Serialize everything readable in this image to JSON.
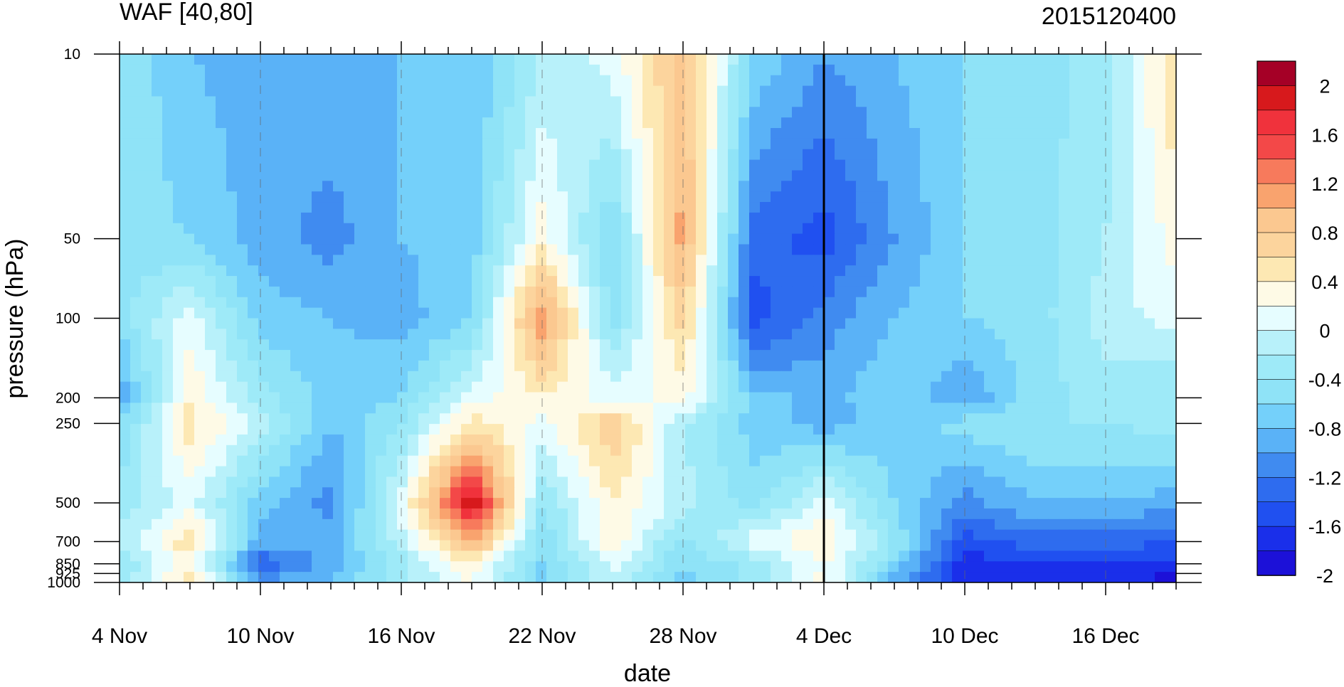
{
  "chart_data": {
    "type": "heatmap",
    "title": "WAF [40,80]",
    "subtitle": "2015120400",
    "xlabel": "date",
    "ylabel": "pressure (hPa)",
    "x_start": "2015-11-04",
    "x_end": "2015-12-19",
    "marker_date": "2015-12-04",
    "x_ticks": [
      {
        "date": "2015-11-04",
        "label": "4 Nov"
      },
      {
        "date": "2015-11-10",
        "label": "10 Nov"
      },
      {
        "date": "2015-11-16",
        "label": "16 Nov"
      },
      {
        "date": "2015-11-22",
        "label": "22 Nov"
      },
      {
        "date": "2015-11-28",
        "label": "28 Nov"
      },
      {
        "date": "2015-12-04",
        "label": "4 Dec"
      },
      {
        "date": "2015-12-10",
        "label": "10 Dec"
      },
      {
        "date": "2015-12-16",
        "label": "16 Dec"
      }
    ],
    "y_scale": "log",
    "y_reversed": true,
    "ylim": [
      1000,
      10
    ],
    "y_ticks": [
      {
        "value": 10,
        "label": "10"
      },
      {
        "value": 50,
        "label": "50"
      },
      {
        "value": 100,
        "label": "100"
      },
      {
        "value": 200,
        "label": "200"
      },
      {
        "value": 250,
        "label": "250"
      },
      {
        "value": 500,
        "label": "500"
      },
      {
        "value": 700,
        "label": "700"
      },
      {
        "value": 850,
        "label": "850"
      },
      {
        "value": 925,
        "label": "925"
      },
      {
        "value": 1000,
        "label": "1000"
      }
    ],
    "levels": [
      10,
      50,
      100,
      200,
      250,
      500,
      700,
      850,
      925,
      1000
    ],
    "dates": [
      "2015-11-04",
      "2015-11-07",
      "2015-11-10",
      "2015-11-13",
      "2015-11-16",
      "2015-11-19",
      "2015-11-22",
      "2015-11-25",
      "2015-11-28",
      "2015-12-01",
      "2015-12-04",
      "2015-12-07",
      "2015-12-10",
      "2015-12-13",
      "2015-12-16",
      "2015-12-19"
    ],
    "values": [
      [
        -0.4,
        -0.8,
        -0.9,
        -0.8,
        -0.8,
        -0.8,
        -0.2,
        0.1,
        0.9,
        -0.6,
        -1.0,
        -0.8,
        -0.6,
        -0.5,
        -0.3,
        0.6
      ],
      [
        -0.5,
        -0.6,
        -0.9,
        -1.1,
        -0.8,
        -0.7,
        0.3,
        -0.6,
        1.1,
        -1.3,
        -1.5,
        -1.0,
        -0.6,
        -0.5,
        -0.2,
        0.3
      ],
      [
        -0.5,
        0.1,
        -0.7,
        -0.8,
        -0.9,
        -0.6,
        1.2,
        -0.5,
        0.7,
        -1.5,
        -1.1,
        -0.8,
        -0.6,
        -0.5,
        -0.1,
        0.1
      ],
      [
        -1.0,
        0.4,
        -0.3,
        -0.7,
        -0.6,
        0.1,
        0.4,
        0.1,
        0.3,
        -0.7,
        -0.9,
        -0.6,
        -1.0,
        -0.5,
        -0.3,
        -0.4
      ],
      [
        -0.6,
        0.5,
        -0.1,
        -0.8,
        -0.4,
        0.5,
        0.1,
        0.8,
        -0.2,
        -0.7,
        -0.9,
        -0.7,
        -0.5,
        -0.4,
        -0.4,
        -0.3
      ],
      [
        -0.3,
        0.1,
        -0.7,
        -1.1,
        0.1,
        2.0,
        -0.4,
        0.4,
        -0.1,
        -0.5,
        0.1,
        -0.6,
        -1.1,
        -0.8,
        -0.8,
        -0.9
      ],
      [
        -0.2,
        0.6,
        -0.9,
        -0.9,
        -0.1,
        1.1,
        -0.6,
        0.4,
        -0.5,
        0.1,
        0.4,
        -0.4,
        -1.5,
        -1.3,
        -1.3,
        -1.4
      ],
      [
        -0.4,
        0.3,
        -1.4,
        -0.9,
        -0.3,
        0.4,
        -0.6,
        0.1,
        -0.6,
        -0.3,
        0.2,
        -0.6,
        -1.7,
        -1.6,
        -1.6,
        -1.7
      ],
      [
        -0.4,
        0.5,
        -1.2,
        -0.9,
        -0.3,
        0.3,
        -0.7,
        0.0,
        -0.7,
        -0.4,
        0.3,
        -0.9,
        -1.8,
        -1.7,
        -1.7,
        -1.9
      ],
      [
        -0.3,
        0.6,
        -0.9,
        -0.7,
        -0.2,
        0.2,
        -0.6,
        0.0,
        -0.6,
        -0.3,
        0.2,
        -0.7,
        -1.6,
        -1.6,
        -1.7,
        -1.8
      ]
    ],
    "colorbar": {
      "labels": [
        "2",
        "1.6",
        "1.2",
        "0.8",
        "0.4",
        "0",
        "-0.4",
        "-0.8",
        "-1.2",
        "-1.6",
        "-2"
      ],
      "colors": [
        "#a50026",
        "#d7191c",
        "#f0323c",
        "#f34848",
        "#f77a5c",
        "#f9a36e",
        "#fbc890",
        "#fcd49d",
        "#fde8b3",
        "#fefae6",
        "#e6fdff",
        "#b8f1fa",
        "#9eeaf8",
        "#8fe3f7",
        "#74d0fa",
        "#5ab2f7",
        "#408bf0",
        "#2e6cef",
        "#2050f0",
        "#1a2fea",
        "#1c11d8"
      ]
    }
  }
}
